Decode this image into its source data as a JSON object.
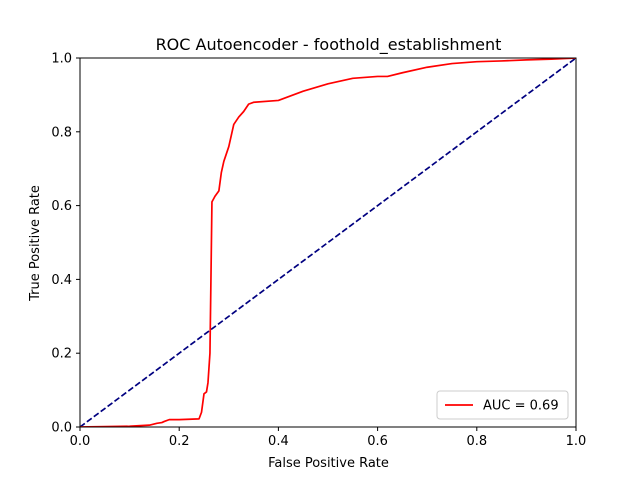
{
  "chart_data": {
    "type": "line",
    "title": "ROC Autoencoder - foothold_establishment",
    "xlabel": "False Positive Rate",
    "ylabel": "True Positive Rate",
    "xlim": [
      0.0,
      1.0
    ],
    "ylim": [
      0.0,
      1.0
    ],
    "xticks": [
      "0.0",
      "0.2",
      "0.4",
      "0.6",
      "0.8",
      "1.0"
    ],
    "yticks": [
      "0.0",
      "0.2",
      "0.4",
      "0.6",
      "0.8",
      "1.0"
    ],
    "grid": false,
    "legend_position": "lower-right",
    "series": [
      {
        "name": "AUC = 0.69",
        "color": "#ff0000",
        "style": "solid",
        "x": [
          0.0,
          0.05,
          0.1,
          0.14,
          0.155,
          0.165,
          0.17,
          0.18,
          0.2,
          0.24,
          0.245,
          0.25,
          0.255,
          0.258,
          0.262,
          0.264,
          0.266,
          0.27,
          0.272,
          0.28,
          0.285,
          0.29,
          0.3,
          0.31,
          0.32,
          0.33,
          0.34,
          0.35,
          0.4,
          0.45,
          0.5,
          0.55,
          0.6,
          0.62,
          0.65,
          0.7,
          0.75,
          0.8,
          0.85,
          0.9,
          0.95,
          1.0
        ],
        "y": [
          0.0,
          0.001,
          0.002,
          0.005,
          0.01,
          0.012,
          0.015,
          0.02,
          0.02,
          0.022,
          0.04,
          0.09,
          0.095,
          0.12,
          0.2,
          0.4,
          0.61,
          0.62,
          0.625,
          0.64,
          0.69,
          0.72,
          0.76,
          0.82,
          0.84,
          0.855,
          0.875,
          0.88,
          0.885,
          0.91,
          0.93,
          0.945,
          0.95,
          0.95,
          0.96,
          0.975,
          0.985,
          0.99,
          0.992,
          0.995,
          0.997,
          1.0
        ]
      },
      {
        "name": "",
        "color": "#000080",
        "style": "dashed",
        "x": [
          0.0,
          1.0
        ],
        "y": [
          0.0,
          1.0
        ]
      }
    ]
  }
}
